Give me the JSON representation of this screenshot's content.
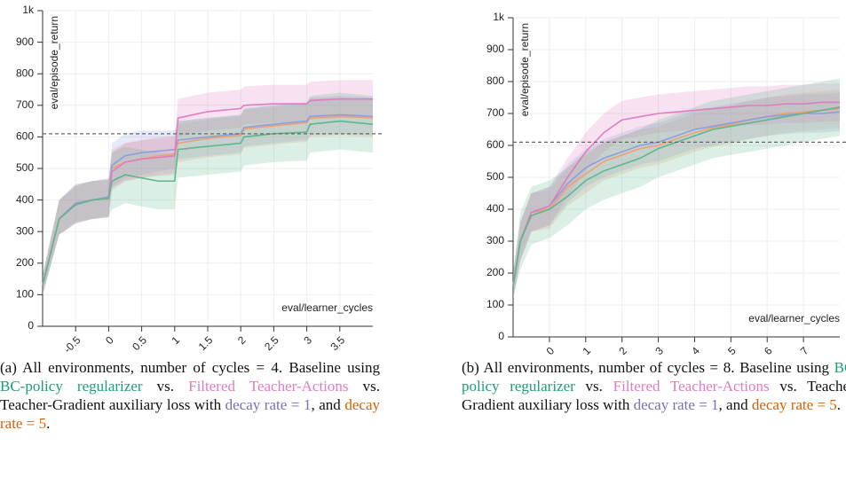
{
  "chart_data": [
    {
      "type": "line",
      "ylabel": "eval/episode_return",
      "xlabel": "eval/learner_cycles",
      "x": [
        -1,
        -0.75,
        -0.5,
        -0.25,
        0,
        0.05,
        0.25,
        0.5,
        0.75,
        1,
        1.05,
        1.5,
        2,
        2.05,
        2.5,
        3,
        3.05,
        3.5,
        4
      ],
      "xlim": [
        -1,
        4
      ],
      "xticks": [
        -0.5,
        0,
        0.5,
        1,
        1.5,
        2,
        2.5,
        3,
        3.5
      ],
      "ylim": [
        0,
        1000
      ],
      "yticks": [
        0,
        100,
        200,
        300,
        400,
        500,
        600,
        700,
        800,
        900,
        {
          "value": 1000,
          "label": "1k"
        }
      ],
      "grid": true,
      "hline": 610,
      "series": [
        {
          "color": "#f0a070",
          "values": [
            130,
            340,
            390,
            400,
            405,
            500,
            520,
            530,
            540,
            545,
            580,
            595,
            605,
            625,
            635,
            645,
            660,
            665,
            660
          ],
          "lower": [
            100,
            290,
            330,
            340,
            345,
            440,
            460,
            470,
            480,
            485,
            520,
            535,
            545,
            565,
            575,
            585,
            600,
            605,
            600
          ],
          "upper": [
            160,
            400,
            450,
            460,
            465,
            560,
            580,
            590,
            600,
            605,
            640,
            655,
            665,
            685,
            695,
            705,
            720,
            725,
            720
          ]
        },
        {
          "color": "#8c9ee0",
          "values": [
            130,
            340,
            390,
            400,
            410,
            510,
            540,
            550,
            555,
            560,
            590,
            600,
            610,
            630,
            640,
            650,
            665,
            670,
            665
          ],
          "lower": [
            100,
            290,
            330,
            340,
            350,
            440,
            470,
            480,
            490,
            500,
            530,
            540,
            550,
            570,
            580,
            590,
            605,
            610,
            605
          ],
          "upper": [
            160,
            400,
            450,
            460,
            470,
            580,
            610,
            620,
            620,
            620,
            650,
            660,
            670,
            690,
            700,
            710,
            725,
            730,
            725
          ]
        },
        {
          "color": "#e07cbf",
          "values": [
            130,
            340,
            385,
            400,
            405,
            490,
            520,
            530,
            535,
            540,
            660,
            680,
            690,
            700,
            705,
            705,
            715,
            720,
            720
          ],
          "lower": [
            100,
            290,
            325,
            340,
            345,
            430,
            460,
            470,
            475,
            480,
            600,
            620,
            630,
            640,
            645,
            645,
            655,
            660,
            660
          ],
          "upper": [
            160,
            400,
            445,
            460,
            465,
            550,
            580,
            590,
            595,
            600,
            720,
            740,
            750,
            760,
            765,
            765,
            775,
            780,
            780
          ]
        },
        {
          "color": "#5cb88a",
          "values": [
            130,
            340,
            385,
            400,
            405,
            460,
            480,
            470,
            460,
            460,
            560,
            570,
            580,
            600,
            610,
            615,
            640,
            650,
            640
          ],
          "lower": [
            100,
            290,
            325,
            340,
            345,
            370,
            390,
            380,
            370,
            370,
            470,
            480,
            490,
            510,
            520,
            525,
            550,
            560,
            550
          ],
          "upper": [
            160,
            400,
            445,
            460,
            465,
            550,
            570,
            560,
            550,
            550,
            650,
            660,
            670,
            690,
            700,
            705,
            730,
            740,
            730
          ]
        }
      ],
      "caption": [
        {
          "text": "(a) All environments, number of cycles = 4. Baseline using "
        },
        {
          "text": "BC-policy regularizer",
          "color": "#1b9e77"
        },
        {
          "text": " vs. "
        },
        {
          "text": "Filtered Teacher-Actions",
          "color": "#e07cbf"
        },
        {
          "text": " vs. Teacher-Gradient auxiliary loss with "
        },
        {
          "text": "decay rate = 1",
          "color": "#7570b3"
        },
        {
          "text": ", and "
        },
        {
          "text": "decay rate = 5",
          "color": "#d95f02"
        },
        {
          "text": "."
        }
      ]
    },
    {
      "type": "line",
      "ylabel": "eval/episode_return",
      "xlabel": "eval/learner_cycles",
      "x": [
        -1,
        -0.8,
        -0.5,
        0,
        0.5,
        1,
        1.5,
        2,
        2.5,
        3,
        3.5,
        4,
        4.5,
        5,
        5.5,
        6,
        6.5,
        7,
        7.5,
        8
      ],
      "xlim": [
        -1,
        8
      ],
      "xticks": [
        0,
        1,
        2,
        3,
        4,
        5,
        6,
        7
      ],
      "ylim": [
        0,
        1000
      ],
      "yticks": [
        0,
        100,
        200,
        300,
        400,
        500,
        600,
        700,
        800,
        900,
        {
          "value": 1000,
          "label": "1k"
        }
      ],
      "grid": true,
      "hline": 610,
      "series": [
        {
          "color": "#f0a070",
          "values": [
            160,
            300,
            390,
            400,
            470,
            510,
            550,
            570,
            590,
            600,
            620,
            640,
            655,
            665,
            680,
            690,
            700,
            705,
            710,
            715
          ],
          "lower": [
            120,
            240,
            330,
            340,
            410,
            450,
            490,
            510,
            530,
            540,
            560,
            580,
            595,
            605,
            620,
            630,
            640,
            645,
            650,
            655
          ],
          "upper": [
            200,
            360,
            450,
            460,
            530,
            570,
            610,
            630,
            650,
            660,
            680,
            700,
            715,
            725,
            740,
            750,
            760,
            765,
            770,
            775
          ]
        },
        {
          "color": "#8c9ee0",
          "values": [
            160,
            300,
            390,
            410,
            480,
            530,
            560,
            580,
            600,
            610,
            630,
            650,
            660,
            670,
            680,
            690,
            695,
            700,
            700,
            705
          ],
          "lower": [
            120,
            240,
            330,
            350,
            420,
            470,
            500,
            520,
            540,
            550,
            570,
            590,
            600,
            610,
            620,
            630,
            635,
            640,
            640,
            645
          ],
          "upper": [
            200,
            360,
            450,
            470,
            540,
            590,
            620,
            640,
            660,
            670,
            690,
            710,
            720,
            730,
            740,
            750,
            755,
            760,
            760,
            765
          ]
        },
        {
          "color": "#e07cbf",
          "values": [
            160,
            300,
            390,
            410,
            500,
            580,
            640,
            680,
            690,
            700,
            705,
            710,
            715,
            720,
            725,
            725,
            730,
            730,
            735,
            735
          ],
          "lower": [
            120,
            240,
            330,
            350,
            440,
            520,
            580,
            620,
            630,
            640,
            645,
            650,
            655,
            660,
            665,
            665,
            670,
            670,
            675,
            675
          ],
          "upper": [
            200,
            360,
            450,
            470,
            560,
            640,
            700,
            740,
            750,
            760,
            765,
            770,
            775,
            780,
            785,
            785,
            790,
            790,
            795,
            795
          ]
        },
        {
          "color": "#5cb88a",
          "values": [
            160,
            300,
            380,
            400,
            440,
            490,
            520,
            540,
            560,
            590,
            610,
            630,
            650,
            660,
            670,
            680,
            690,
            700,
            710,
            720
          ],
          "lower": [
            120,
            210,
            290,
            310,
            350,
            400,
            430,
            450,
            470,
            500,
            520,
            540,
            560,
            570,
            580,
            590,
            600,
            610,
            620,
            630
          ],
          "upper": [
            200,
            390,
            470,
            490,
            530,
            580,
            610,
            630,
            650,
            680,
            700,
            720,
            740,
            750,
            760,
            770,
            780,
            790,
            800,
            810
          ]
        }
      ],
      "caption": [
        {
          "text": "(b) All environments, number of cycles = 8. Baseline using "
        },
        {
          "text": "BC-policy regularizer",
          "color": "#1b9e77"
        },
        {
          "text": " vs. "
        },
        {
          "text": "Filtered Teacher-Actions",
          "color": "#e07cbf"
        },
        {
          "text": " vs. Teacher-Gradient auxiliary loss with "
        },
        {
          "text": "decay rate = 1",
          "color": "#7570b3"
        },
        {
          "text": ", and "
        },
        {
          "text": "decay rate = 5",
          "color": "#d95f02"
        },
        {
          "text": "."
        }
      ]
    }
  ]
}
